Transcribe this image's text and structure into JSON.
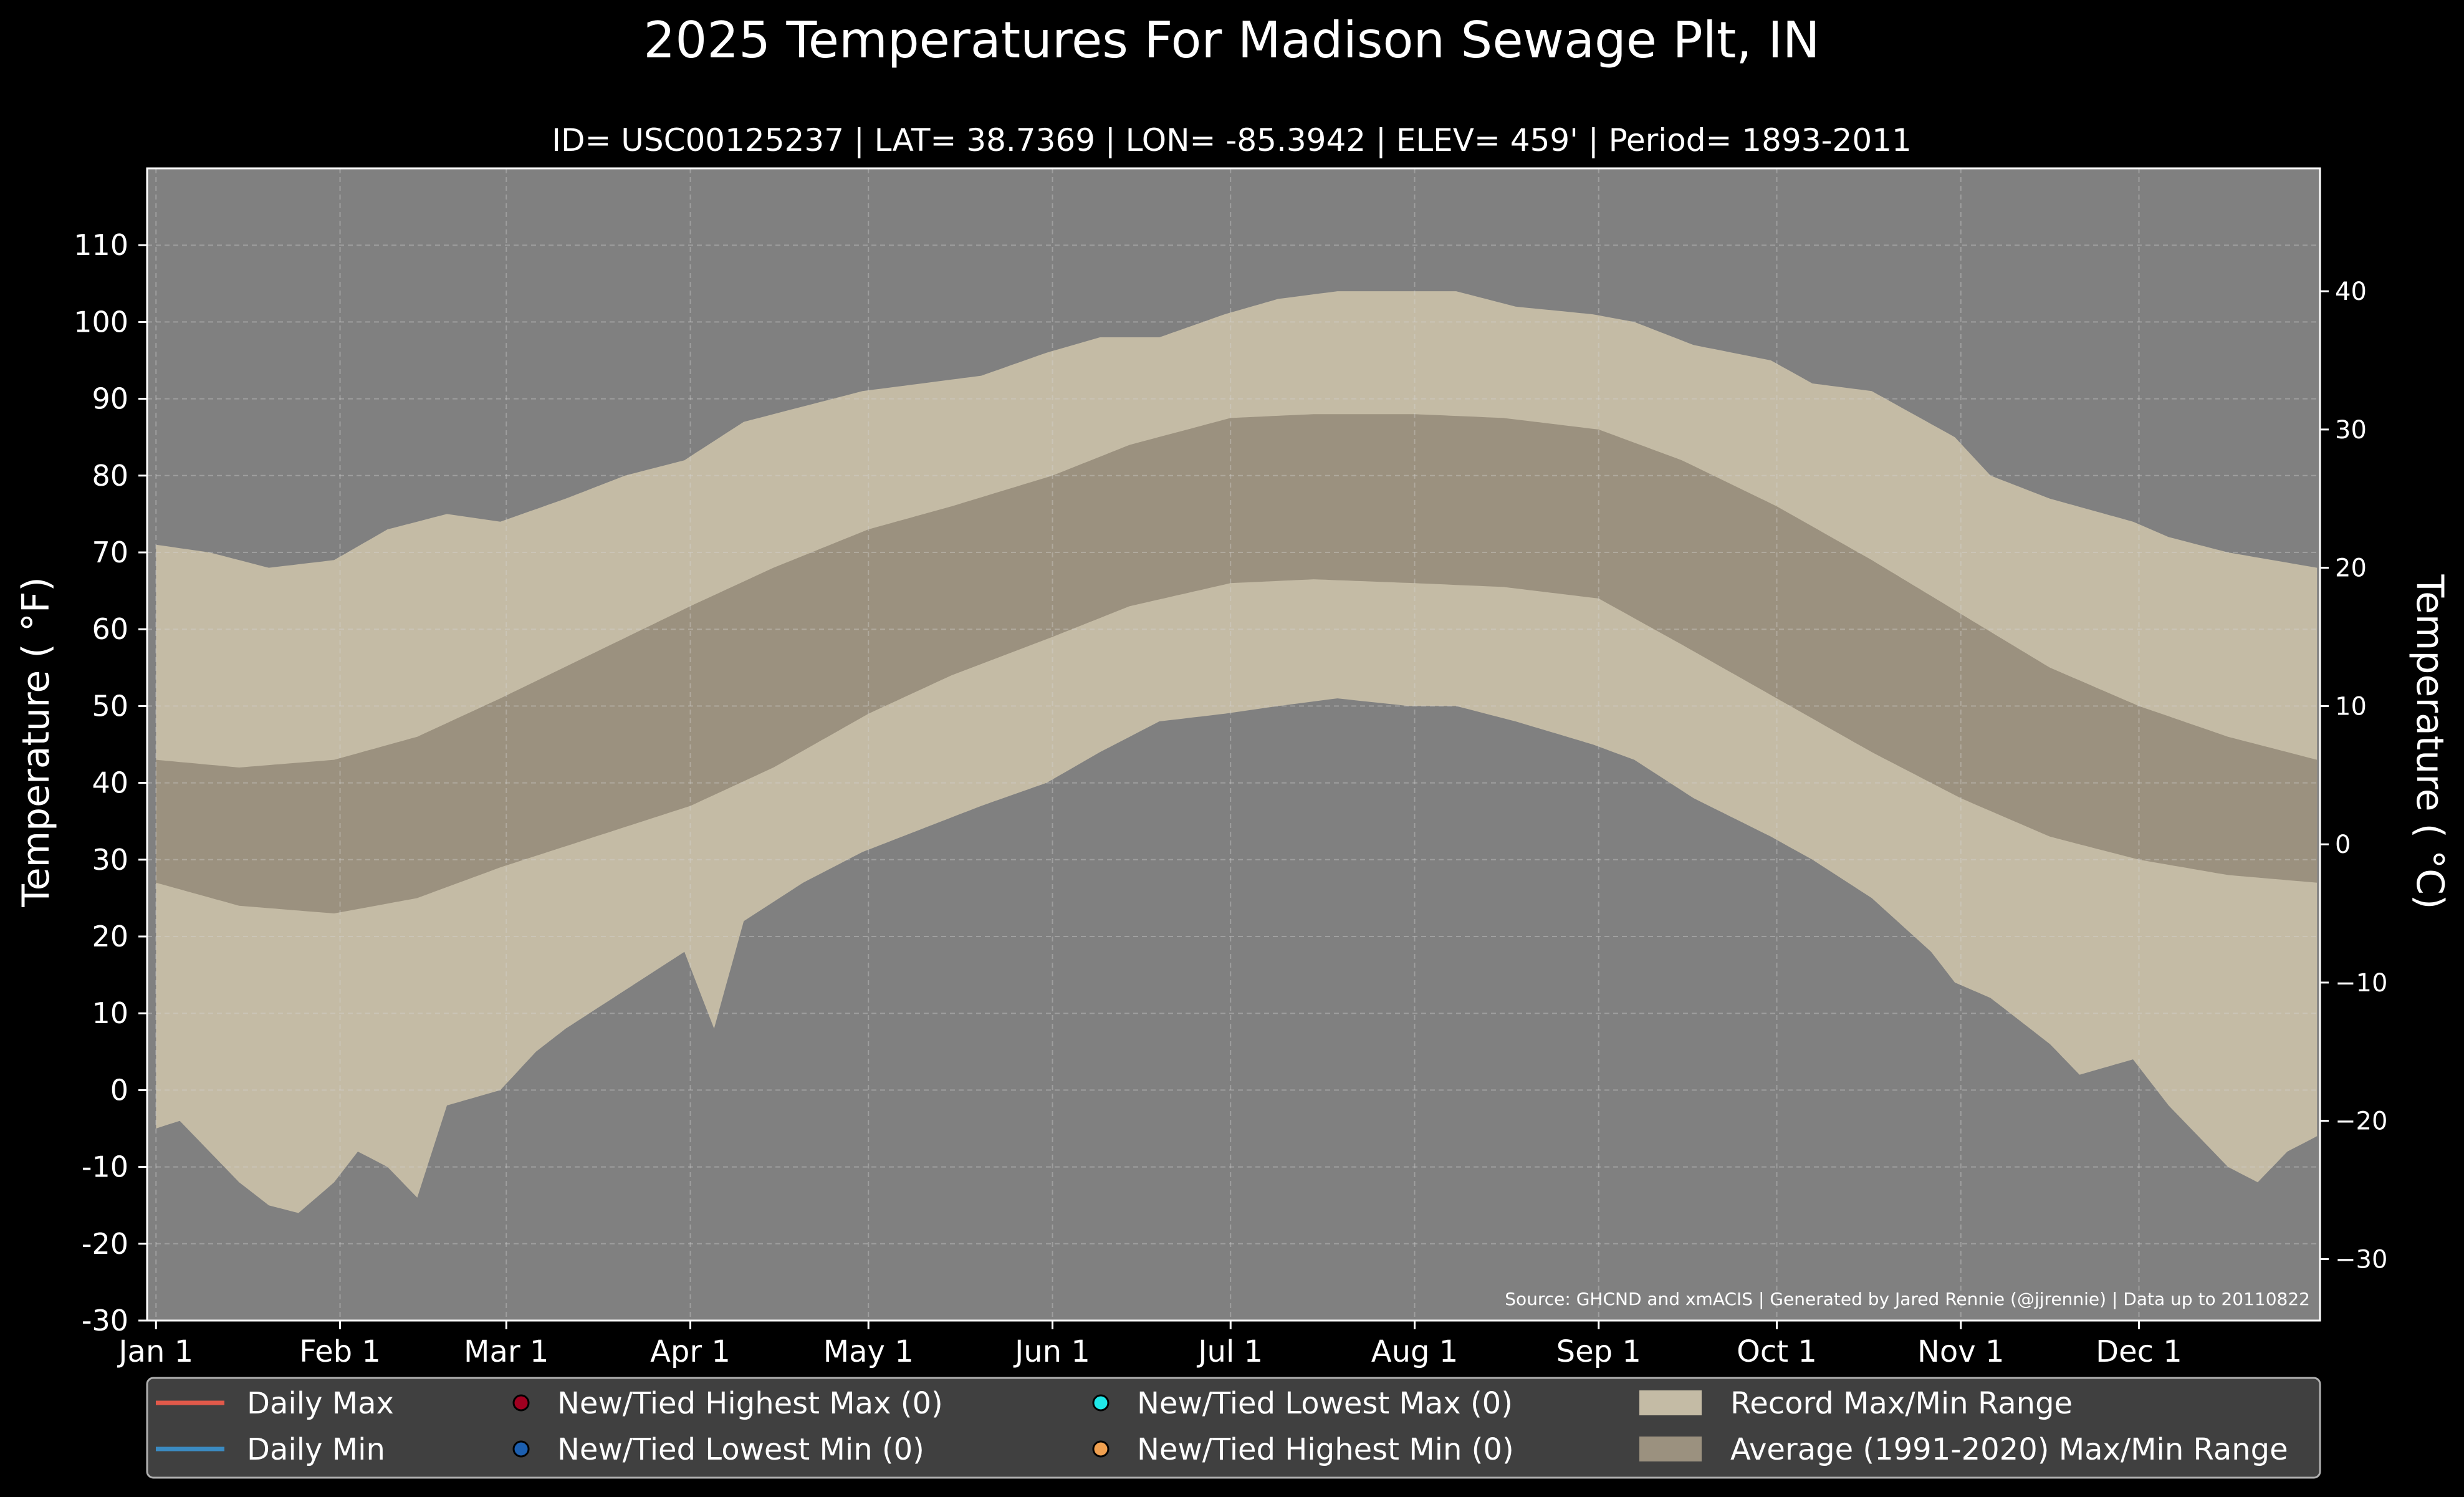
{
  "chart_data": {
    "type": "area",
    "title": "2025 Temperatures For Madison Sewage Plt, IN",
    "subtitle": "ID= USC00125237 | LAT= 38.7369 | LON= -85.3942 | ELEV= 459' | Period= 1893-2011",
    "ylabel_left": "Temperature ( °F)",
    "ylabel_right": "Temperature ( °C)",
    "source": "Source: GHCND and xmACIS | Generated by Jared Rennie (@jjrennie) | Data up to 20110822",
    "x_ticks": [
      "Jan 1",
      "Feb 1",
      "Mar 1",
      "Apr 1",
      "May 1",
      "Jun 1",
      "Jul 1",
      "Aug 1",
      "Sep 1",
      "Oct 1",
      "Nov 1",
      "Dec 1"
    ],
    "x_tick_days": [
      1,
      32,
      60,
      91,
      121,
      152,
      182,
      213,
      244,
      274,
      305,
      335
    ],
    "ylim_f": [
      -30,
      120
    ],
    "yticks_f": [
      -30,
      -20,
      -10,
      0,
      10,
      20,
      30,
      40,
      50,
      60,
      70,
      80,
      90,
      100,
      110
    ],
    "yticks_c": [
      -30,
      -20,
      -10,
      0,
      10,
      20,
      30,
      40
    ],
    "grid": true,
    "legend_position": "bottom",
    "record_max": {
      "days": [
        1,
        10,
        20,
        31,
        40,
        50,
        59,
        70,
        80,
        90,
        100,
        110,
        120,
        130,
        140,
        151,
        160,
        170,
        181,
        190,
        200,
        212,
        220,
        230,
        243,
        250,
        260,
        273,
        280,
        290,
        304,
        310,
        320,
        334,
        340,
        350,
        365
      ],
      "values": [
        71,
        70,
        68,
        69,
        73,
        75,
        74,
        77,
        80,
        82,
        87,
        89,
        91,
        92,
        93,
        96,
        98,
        98,
        101,
        103,
        104,
        104,
        104,
        102,
        101,
        100,
        97,
        95,
        92,
        91,
        85,
        80,
        77,
        74,
        72,
        70,
        68
      ]
    },
    "record_min": {
      "days": [
        1,
        5,
        10,
        15,
        20,
        25,
        31,
        35,
        40,
        45,
        50,
        59,
        65,
        70,
        80,
        90,
        95,
        100,
        110,
        120,
        130,
        140,
        151,
        160,
        170,
        181,
        190,
        200,
        212,
        220,
        230,
        243,
        250,
        260,
        273,
        280,
        290,
        300,
        304,
        310,
        320,
        325,
        334,
        340,
        345,
        350,
        355,
        360,
        365
      ],
      "values": [
        -5,
        -4,
        -8,
        -12,
        -15,
        -16,
        -12,
        -8,
        -10,
        -14,
        -2,
        0,
        5,
        8,
        13,
        18,
        8,
        22,
        27,
        31,
        34,
        37,
        40,
        44,
        48,
        49,
        50,
        51,
        50,
        50,
        48,
        45,
        43,
        38,
        33,
        30,
        25,
        18,
        14,
        12,
        6,
        2,
        4,
        -2,
        -6,
        -10,
        -12,
        -8,
        -6
      ]
    },
    "normal_max": {
      "days": [
        1,
        15,
        31,
        45,
        59,
        75,
        91,
        105,
        121,
        135,
        152,
        165,
        182,
        196,
        213,
        228,
        244,
        258,
        274,
        290,
        305,
        320,
        335,
        350,
        365
      ],
      "values": [
        43,
        42,
        43,
        46,
        51,
        57,
        63,
        68,
        73,
        76,
        80,
        84,
        87.5,
        88,
        88,
        87.5,
        86,
        82,
        76,
        69,
        62,
        55,
        50,
        46,
        43
      ]
    },
    "normal_min": {
      "days": [
        1,
        15,
        31,
        45,
        59,
        75,
        91,
        105,
        121,
        135,
        152,
        165,
        182,
        196,
        213,
        228,
        244,
        258,
        274,
        290,
        305,
        320,
        335,
        350,
        365
      ],
      "values": [
        27,
        24,
        23,
        25,
        29,
        33,
        37,
        42,
        49,
        54,
        59,
        63,
        66,
        66.5,
        66,
        65.5,
        64,
        58,
        51,
        44,
        38,
        33,
        30,
        28,
        27
      ]
    },
    "legend": [
      {
        "label": "Daily Max",
        "kind": "line",
        "color": "#e2594a"
      },
      {
        "label": "New/Tied Highest Max (0)",
        "kind": "dot",
        "color": "#a00020"
      },
      {
        "label": "New/Tied Lowest Max (0)",
        "kind": "dot",
        "color": "#20e8e8"
      },
      {
        "label": "Record Max/Min Range",
        "kind": "patch",
        "color": "#c4bba5"
      },
      {
        "label": "Daily Min",
        "kind": "line",
        "color": "#3b8bc2"
      },
      {
        "label": "New/Tied Lowest Min (0)",
        "kind": "dot",
        "color": "#1c5fb0"
      },
      {
        "label": "New/Tied Highest Min (0)",
        "kind": "dot",
        "color": "#f0a050"
      },
      {
        "label": "Average (1991-2020) Max/Min Range",
        "kind": "patch",
        "color": "#9b917f"
      }
    ]
  },
  "colors": {
    "background": "#000000",
    "plot_background": "#808080",
    "record_fill": "#c4bba5",
    "normal_fill": "#9b917f",
    "legend_background": "#404040"
  }
}
